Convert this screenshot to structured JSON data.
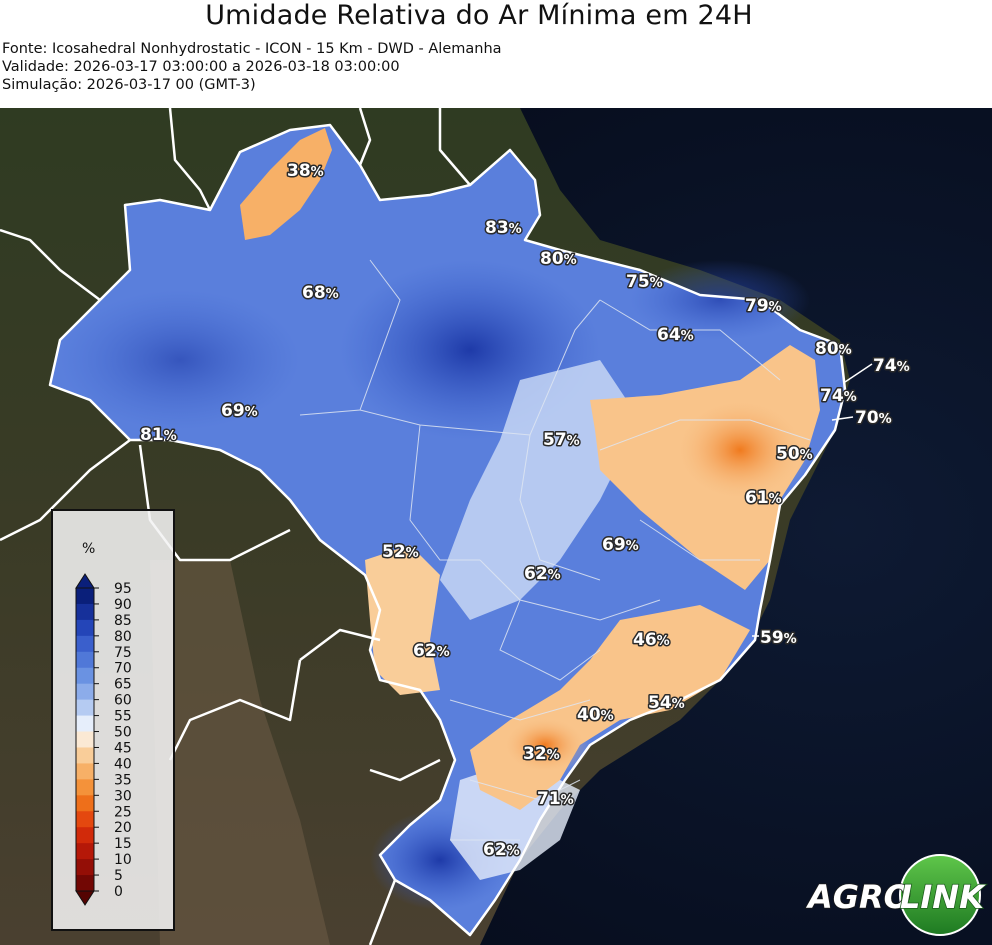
{
  "title": "Umidade Relativa do Ar Mínima em 24H",
  "meta": {
    "source": "Fonte: Icosahedral Nonhydrostatic - ICON - 15 Km - DWD - Alemanha",
    "validity": "Validade: 2026-03-17 03:00:00 a 2026-03-18 03:00:00",
    "simulation": "Simulação: 2026-03-17 00 (GMT-3)"
  },
  "colorbar": {
    "unit": "%",
    "ticks": [
      "95",
      "90",
      "85",
      "80",
      "75",
      "70",
      "65",
      "60",
      "55",
      "50",
      "45",
      "40",
      "35",
      "30",
      "25",
      "20",
      "15",
      "10",
      "5",
      "0"
    ],
    "colors": [
      "#0a1f7a",
      "#16309a",
      "#2445b8",
      "#3a5fcc",
      "#5078d8",
      "#6a92e2",
      "#8cacea",
      "#b5cbf2",
      "#e6eefb",
      "#fbe9d4",
      "#f9cd99",
      "#f7b067",
      "#f4923a",
      "#ee6f1a",
      "#e4480f",
      "#d12a0a",
      "#b51808",
      "#940e06",
      "#720704",
      "#540402"
    ]
  },
  "readings": [
    {
      "value": "38",
      "unit": "%"
    },
    {
      "value": "83",
      "unit": "%"
    },
    {
      "value": "80",
      "unit": "%"
    },
    {
      "value": "75",
      "unit": "%"
    },
    {
      "value": "79",
      "unit": "%"
    },
    {
      "value": "68",
      "unit": "%"
    },
    {
      "value": "64",
      "unit": "%"
    },
    {
      "value": "80",
      "unit": "%"
    },
    {
      "value": "74",
      "unit": "%"
    },
    {
      "value": "74",
      "unit": "%"
    },
    {
      "value": "70",
      "unit": "%"
    },
    {
      "value": "69",
      "unit": "%"
    },
    {
      "value": "81",
      "unit": "%"
    },
    {
      "value": "57",
      "unit": "%"
    },
    {
      "value": "50",
      "unit": "%"
    },
    {
      "value": "61",
      "unit": "%"
    },
    {
      "value": "52",
      "unit": "%"
    },
    {
      "value": "69",
      "unit": "%"
    },
    {
      "value": "62",
      "unit": "%"
    },
    {
      "value": "46",
      "unit": "%"
    },
    {
      "value": "59",
      "unit": "%"
    },
    {
      "value": "62",
      "unit": "%"
    },
    {
      "value": "40",
      "unit": "%"
    },
    {
      "value": "54",
      "unit": "%"
    },
    {
      "value": "32",
      "unit": "%"
    },
    {
      "value": "71",
      "unit": "%"
    },
    {
      "value": "62",
      "unit": "%"
    }
  ],
  "logo": {
    "part1": "AGRO",
    "part2": "LINK"
  }
}
